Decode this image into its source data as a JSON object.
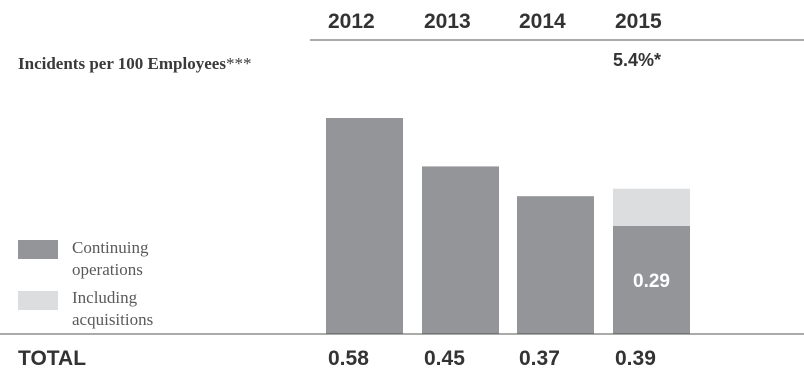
{
  "chart_data": {
    "type": "bar",
    "title": "Incidents per 100 Employees",
    "title_suffix": "***",
    "categories": [
      "2012",
      "2013",
      "2014",
      "2015"
    ],
    "series": [
      {
        "name": "Continuing operations",
        "values": [
          0.58,
          0.45,
          0.37,
          0.29
        ],
        "color": "#939598"
      },
      {
        "name": "Including acquisitions",
        "values": [
          0,
          0,
          0,
          0.1
        ],
        "color": "#dcdddf"
      }
    ],
    "totals_label": "TOTAL",
    "totals": [
      "0.58",
      "0.45",
      "0.37",
      "0.39"
    ],
    "inbar_label": "0.29",
    "change_label": "5.4%*",
    "legend_placement": "bottom-left",
    "ylim": [
      0,
      0.58
    ]
  }
}
